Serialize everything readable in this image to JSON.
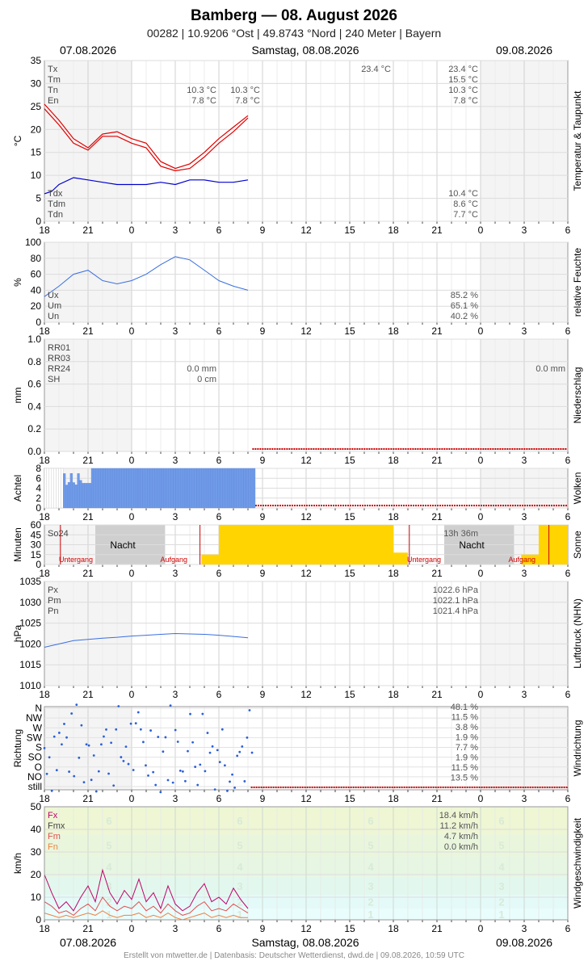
{
  "header": {
    "title": "Bamberg  —  08. August 2026",
    "subtitle": "00282  |  10.9206 °Ost  |  49.8743 °Nord  |  240 Meter  |  Bayern",
    "date_left": "07.08.2026",
    "date_center": "Samstag, 08.08.2026",
    "date_right": "09.08.2026"
  },
  "footer": {
    "date_left": "07.08.2026",
    "date_center": "Samstag, 08.08.2026",
    "date_right": "09.08.2026",
    "credit": "Erstellt von mtwetter.de | Datenbasis: Deutscher Wetterdienst, dwd.de | 09.08.2026, 10:59 UTC"
  },
  "x_axis": {
    "hour_labels": [
      "18",
      "21",
      "0",
      "3",
      "6",
      "9",
      "12",
      "15",
      "18",
      "21",
      "0",
      "3",
      "6"
    ]
  },
  "colors": {
    "temperature": "#e00000",
    "dewpoint": "#0000d0",
    "humidity": "#3a6fe0",
    "pressure": "#3a6fe0",
    "clouds": "#6f9ae8",
    "sun": "#ffd400",
    "wind_fx": "#c0006a",
    "wind_fm": "#e05050",
    "wind_fn": "#f08040",
    "zero_line": "#cc0000"
  },
  "chart_data": [
    {
      "id": "temperature",
      "type": "line",
      "ylabel": "°C",
      "side_label": "Temperatur & Taupunkt",
      "ylim": [
        0,
        35
      ],
      "yticks": [
        0,
        5,
        10,
        15,
        20,
        25,
        30,
        35
      ],
      "series": [
        {
          "name": "Tx",
          "x": [
            18,
            19,
            20,
            21,
            22,
            23,
            24,
            25,
            26,
            27,
            28,
            29,
            30,
            31,
            32
          ],
          "values": [
            25.5,
            22,
            18,
            16,
            19,
            19.5,
            18,
            17,
            13,
            11.5,
            12.5,
            15,
            18,
            20.5,
            23
          ]
        },
        {
          "name": "Tn",
          "x": [
            18,
            19,
            20,
            21,
            22,
            23,
            24,
            25,
            26,
            27,
            28,
            29,
            30,
            31,
            32
          ],
          "values": [
            24.5,
            21,
            17,
            15.5,
            18.5,
            18.5,
            17,
            16,
            12,
            11,
            11.5,
            14,
            17,
            19.5,
            22.5
          ]
        },
        {
          "name": "Td",
          "x": [
            18,
            18.5,
            19,
            20,
            21,
            22,
            23,
            24,
            25,
            26,
            27,
            28,
            29,
            30,
            31,
            32
          ],
          "values": [
            6,
            6.5,
            8,
            9.5,
            9,
            8.5,
            8,
            8,
            8,
            8.5,
            8,
            9,
            9,
            8.5,
            8.5,
            9
          ]
        }
      ],
      "labels_left": [
        "Tx",
        "Tm",
        "Tn",
        "En"
      ],
      "labels_left_bottom": [
        "Tdx",
        "Tdm",
        "Tdn"
      ],
      "mid_values_1": [
        "10.3 °C",
        "7.8 °C"
      ],
      "mid_values_2": [
        "10.3 °C",
        "7.8 °C"
      ],
      "day_values": [
        "23.4 °C"
      ],
      "right_values": [
        "23.4 °C",
        "15.5 °C",
        "10.3 °C",
        "7.8 °C"
      ],
      "right_values_bottom": [
        "10.4 °C",
        "8.6 °C",
        "7.7 °C"
      ]
    },
    {
      "id": "humidity",
      "type": "line",
      "ylabel": "%",
      "side_label": "relative Feuchte",
      "ylim": [
        0,
        100
      ],
      "yticks": [
        0,
        20,
        40,
        60,
        80,
        100
      ],
      "series": [
        {
          "name": "U",
          "x": [
            18,
            19,
            20,
            21,
            22,
            23,
            24,
            25,
            26,
            27,
            28,
            29,
            30,
            31,
            32
          ],
          "values": [
            32,
            45,
            60,
            65,
            52,
            48,
            52,
            60,
            72,
            82,
            78,
            65,
            52,
            45,
            40
          ]
        }
      ],
      "labels_left": [
        "Ux",
        "Um",
        "Un"
      ],
      "right_values": [
        "85.2 %",
        "65.1 %",
        "40.2 %"
      ]
    },
    {
      "id": "precipitation",
      "type": "bar",
      "ylabel": "mm",
      "side_label": "Niederschlag",
      "ylim": [
        0,
        1.0
      ],
      "yticks": [
        "0.0",
        "0.2",
        "0.4",
        "0.6",
        "0.8",
        "1.0"
      ],
      "labels_left": [
        "RR01",
        "RR03",
        "RR24",
        "SH"
      ],
      "mid_values": [
        "0.0 mm",
        "0 cm"
      ],
      "right_values": [
        "0.0 mm"
      ]
    },
    {
      "id": "clouds",
      "type": "bar",
      "ylabel": "Achtel",
      "side_label": "Wolken",
      "ylim": [
        0,
        8
      ],
      "yticks": [
        0,
        2,
        4,
        6,
        8
      ],
      "x": [
        18,
        19,
        20,
        21,
        22,
        23,
        24,
        25,
        26,
        27,
        28,
        29,
        30,
        31,
        32
      ],
      "values": [
        3,
        7,
        8,
        8,
        8,
        8,
        8,
        8,
        8,
        8,
        8,
        8,
        8,
        8,
        8
      ]
    },
    {
      "id": "sunshine",
      "type": "bar",
      "ylabel": "Minuten",
      "side_label": "Sonne",
      "ylim": [
        0,
        60
      ],
      "yticks": [
        0,
        15,
        30,
        45,
        60
      ],
      "labels_left": [
        "So24"
      ],
      "night_label": "Nacht",
      "sunset_label": "Untergang",
      "sunrise_label": "Aufgang",
      "right_values": [
        "13h 36m"
      ]
    },
    {
      "id": "pressure",
      "type": "line",
      "ylabel": "hPa",
      "side_label": "Luftdruck (NHN)",
      "ylim": [
        1010,
        1035
      ],
      "yticks": [
        1010,
        1015,
        1020,
        1025,
        1030,
        1035
      ],
      "series": [
        {
          "name": "P",
          "x": [
            18,
            19,
            20,
            21,
            22,
            23,
            24,
            25,
            26,
            27,
            28,
            29,
            30,
            31,
            32
          ],
          "values": [
            1019.2,
            1020,
            1020.8,
            1021.1,
            1021.4,
            1021.6,
            1021.9,
            1022.1,
            1022.3,
            1022.5,
            1022.4,
            1022.3,
            1022.1,
            1021.8,
            1021.5
          ]
        }
      ],
      "labels_left": [
        "Px",
        "Pm",
        "Pn"
      ],
      "right_values": [
        "1022.6 hPa",
        "1022.1 hPa",
        "1021.4 hPa"
      ]
    },
    {
      "id": "wind_direction",
      "type": "scatter",
      "ylabel": "Richtung",
      "side_label": "Windrichtung",
      "categories": [
        "still",
        "NO",
        "O",
        "SO",
        "S",
        "SW",
        "W",
        "NW",
        "N"
      ],
      "right_values": [
        "48.1 %",
        "11.5 %",
        "3.8 %",
        "1.9 %",
        "7.7 %",
        "1.9 %",
        "11.5 %",
        "13.5 %"
      ]
    },
    {
      "id": "wind_speed",
      "type": "line",
      "ylabel": "km/h",
      "side_label": "Windgeschwindigkeit",
      "ylim": [
        0,
        50
      ],
      "yticks": [
        0,
        10,
        20,
        30,
        40,
        50
      ],
      "series": [
        {
          "name": "Fx",
          "x": [
            18,
            18.5,
            19,
            19.5,
            20,
            20.5,
            21,
            21.5,
            22,
            22.5,
            23,
            23.5,
            24,
            24.5,
            25,
            25.5,
            26,
            26.5,
            27,
            27.5,
            28,
            28.5,
            29,
            29.5,
            30,
            30.5,
            31,
            31.5,
            32
          ],
          "values": [
            20,
            12,
            5,
            8,
            4,
            10,
            15,
            8,
            22,
            12,
            7,
            13,
            9,
            18,
            8,
            12,
            5,
            15,
            7,
            4,
            6,
            12,
            16,
            8,
            10,
            7,
            14,
            9,
            5
          ]
        },
        {
          "name": "Fm",
          "x": [
            18,
            18.5,
            19,
            19.5,
            20,
            20.5,
            21,
            21.5,
            22,
            22.5,
            23,
            23.5,
            24,
            24.5,
            25,
            25.5,
            26,
            26.5,
            27,
            27.5,
            28,
            28.5,
            29,
            29.5,
            30,
            30.5,
            31,
            31.5,
            32
          ],
          "values": [
            8,
            6,
            3,
            4,
            2,
            5,
            7,
            4,
            10,
            6,
            4,
            6,
            5,
            8,
            4,
            6,
            3,
            7,
            4,
            2,
            3,
            6,
            8,
            4,
            5,
            4,
            7,
            5,
            3
          ]
        },
        {
          "name": "Fn",
          "x": [
            18,
            18.5,
            19,
            19.5,
            20,
            20.5,
            21,
            21.5,
            22,
            22.5,
            23,
            23.5,
            24,
            24.5,
            25,
            25.5,
            26,
            26.5,
            27,
            27.5,
            28,
            28.5,
            29,
            29.5,
            30,
            30.5,
            31,
            31.5,
            32
          ],
          "values": [
            3,
            2,
            1,
            2,
            1,
            2,
            3,
            2,
            4,
            2,
            1,
            2,
            2,
            3,
            1,
            2,
            1,
            3,
            1,
            0,
            1,
            2,
            3,
            1,
            2,
            1,
            2,
            1,
            1
          ]
        }
      ],
      "labels_left": [
        "Fx",
        "Fmx",
        "Fm",
        "Fn"
      ],
      "right_values": [
        "18.4 km/h",
        "11.2 km/h",
        "4.7 km/h",
        "0.0 km/h"
      ],
      "beaufort_numbers": [
        "1",
        "2",
        "3",
        "4",
        "5",
        "6"
      ]
    }
  ]
}
